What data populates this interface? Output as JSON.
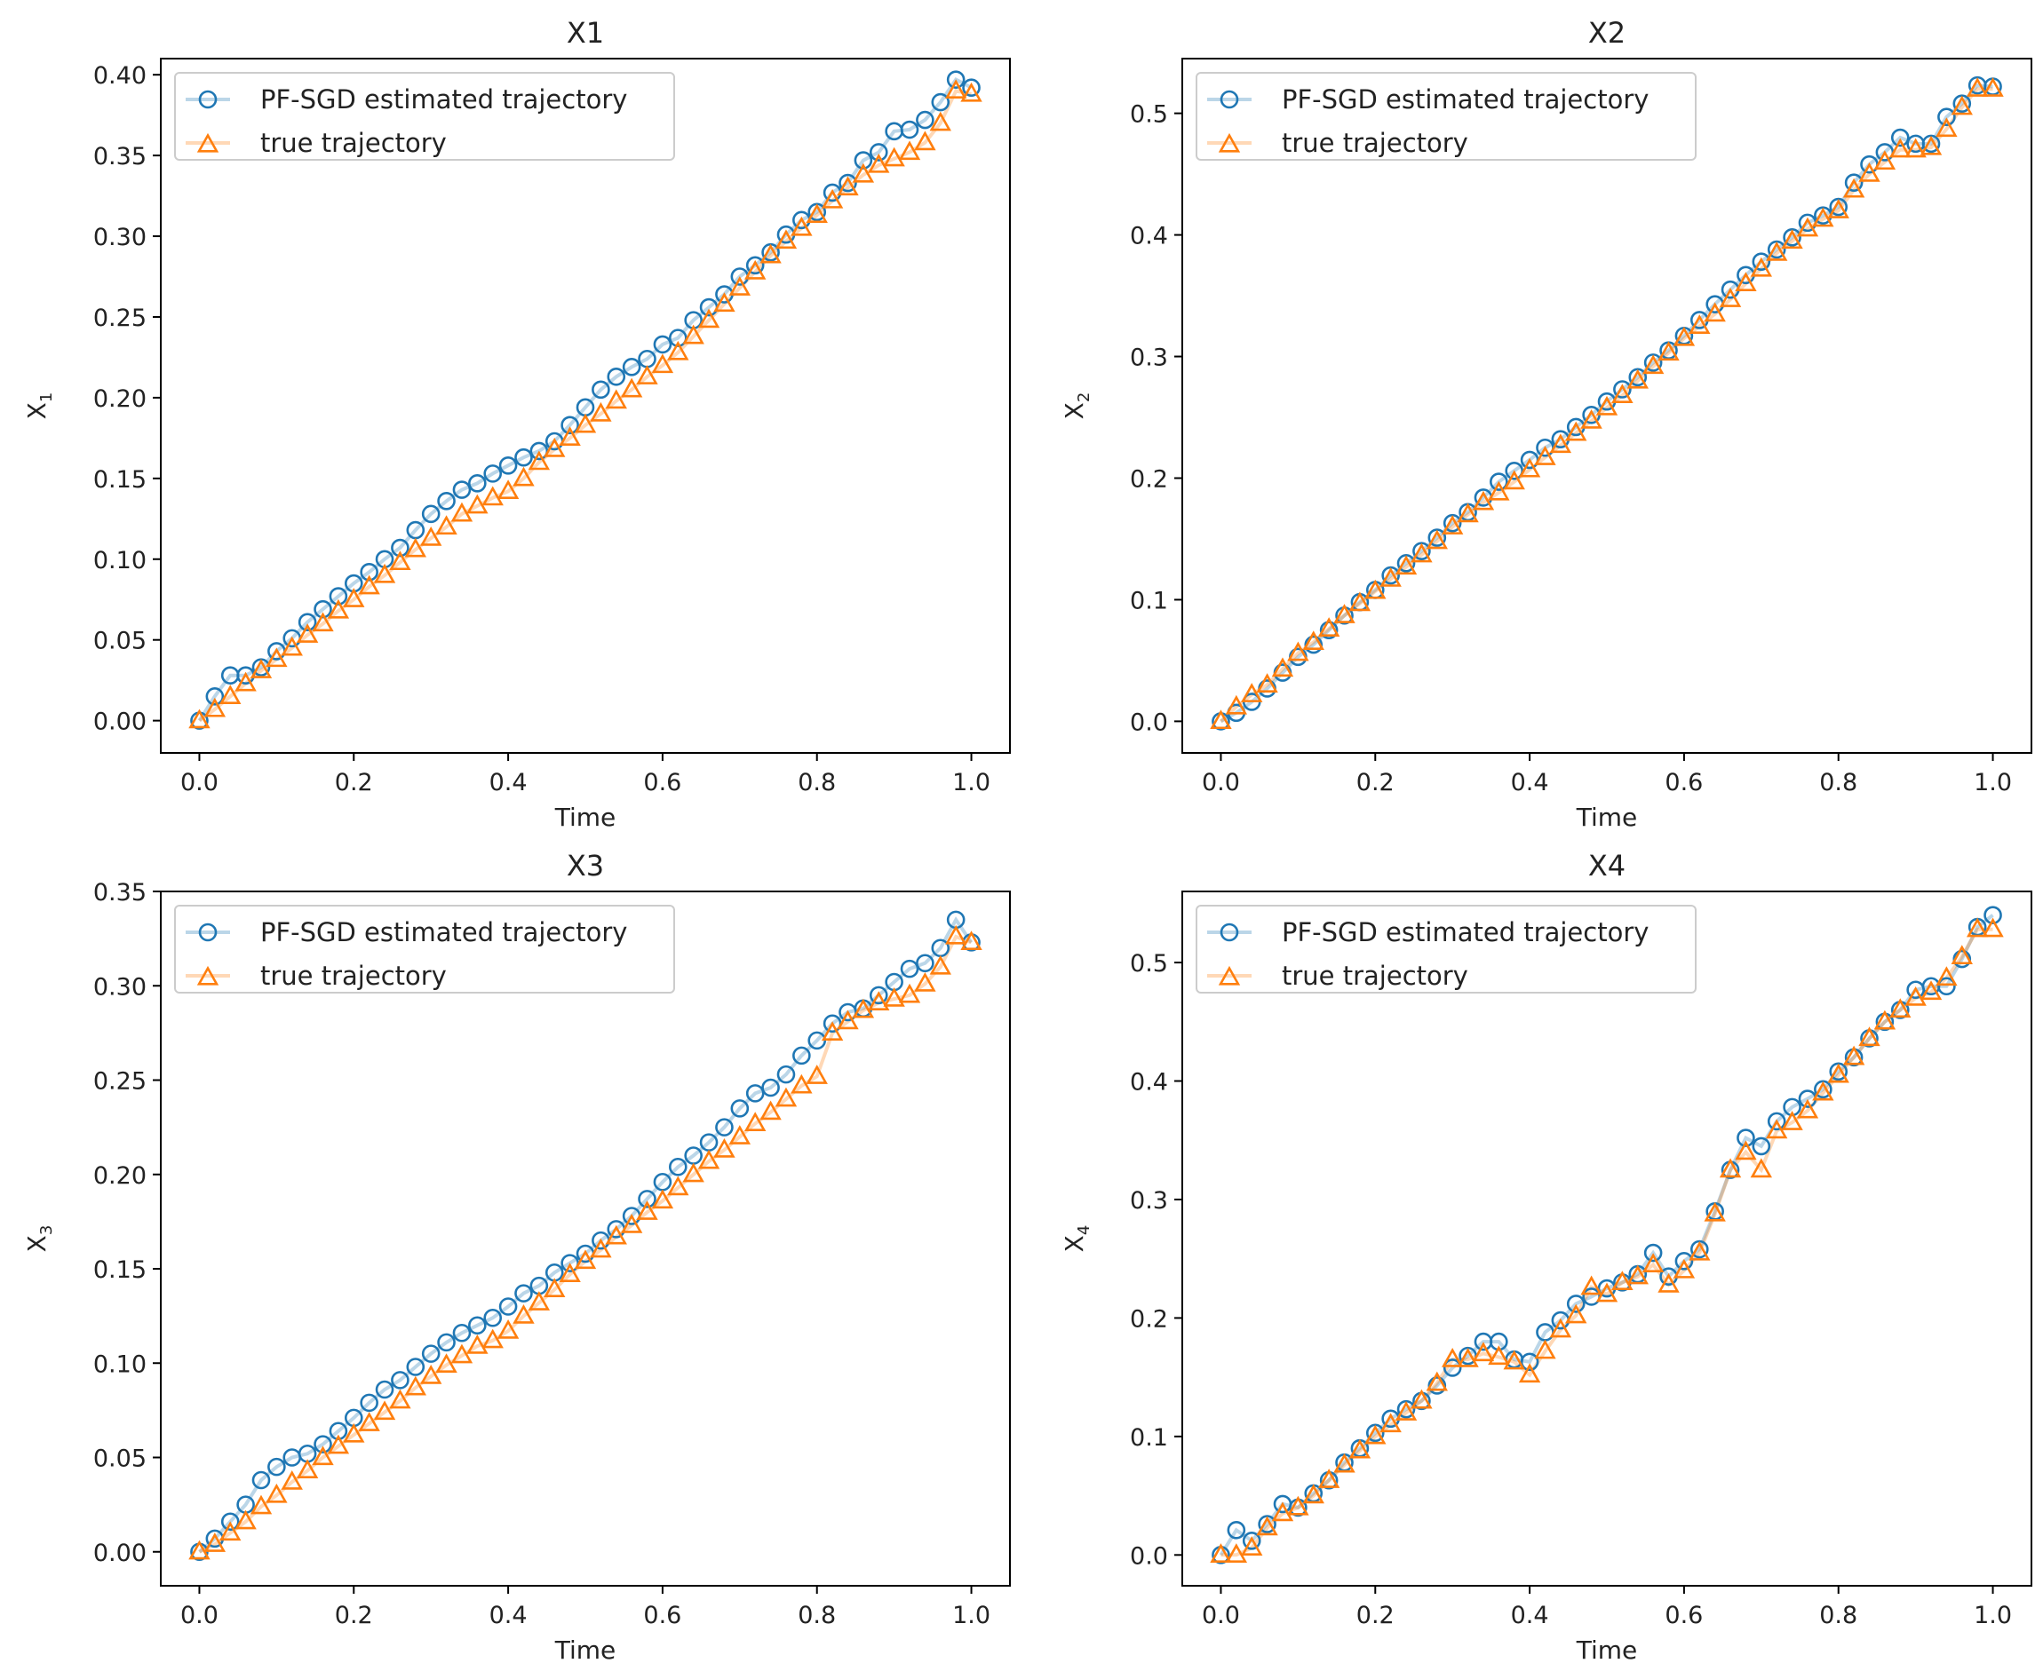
{
  "chart_data": [
    {
      "type": "line",
      "title": "X1",
      "xlabel": "Time",
      "ylabel": "X1",
      "ylabel_main": "X",
      "ylabel_sub": "1",
      "xlim": [
        -0.05,
        1.05
      ],
      "ylim": [
        -0.02,
        0.41
      ],
      "xticks": [
        0.0,
        0.2,
        0.4,
        0.6,
        0.8,
        1.0
      ],
      "xtick_labels": [
        "0.0",
        "0.2",
        "0.4",
        "0.6",
        "0.8",
        "1.0"
      ],
      "yticks": [
        0.0,
        0.05,
        0.1,
        0.15,
        0.2,
        0.25,
        0.3,
        0.35,
        0.4
      ],
      "ytick_labels": [
        "0.00",
        "0.05",
        "0.10",
        "0.15",
        "0.20",
        "0.25",
        "0.30",
        "0.35",
        "0.40"
      ],
      "legend": "top-left",
      "grid": false,
      "x": [
        0.0,
        0.02,
        0.04,
        0.06,
        0.08,
        0.1,
        0.12,
        0.14,
        0.16,
        0.18,
        0.2,
        0.22,
        0.24,
        0.26,
        0.28,
        0.3,
        0.32,
        0.34,
        0.36,
        0.38,
        0.4,
        0.42,
        0.44,
        0.46,
        0.48,
        0.5,
        0.52,
        0.54,
        0.56,
        0.58,
        0.6,
        0.62,
        0.64,
        0.66,
        0.68,
        0.7,
        0.72,
        0.74,
        0.76,
        0.78,
        0.8,
        0.82,
        0.84,
        0.86,
        0.88,
        0.9,
        0.92,
        0.94,
        0.96,
        0.98,
        1.0
      ],
      "series": [
        {
          "name": "PF-SGD estimated trajectory",
          "color": "#1f77b4",
          "marker": "circle",
          "values": [
            0.0,
            0.015,
            0.028,
            0.028,
            0.033,
            0.043,
            0.051,
            0.061,
            0.069,
            0.077,
            0.085,
            0.092,
            0.1,
            0.107,
            0.118,
            0.128,
            0.136,
            0.143,
            0.147,
            0.153,
            0.158,
            0.163,
            0.167,
            0.173,
            0.183,
            0.194,
            0.205,
            0.213,
            0.219,
            0.224,
            0.233,
            0.237,
            0.248,
            0.256,
            0.264,
            0.275,
            0.282,
            0.29,
            0.301,
            0.31,
            0.315,
            0.327,
            0.333,
            0.347,
            0.352,
            0.365,
            0.366,
            0.372,
            0.383,
            0.397,
            0.392
          ]
        },
        {
          "name": "true trajectory",
          "color": "#ff7f0e",
          "marker": "triangle",
          "values": [
            0.0,
            0.007,
            0.015,
            0.023,
            0.031,
            0.038,
            0.045,
            0.053,
            0.06,
            0.068,
            0.075,
            0.083,
            0.09,
            0.098,
            0.106,
            0.113,
            0.12,
            0.128,
            0.133,
            0.138,
            0.142,
            0.15,
            0.16,
            0.168,
            0.175,
            0.183,
            0.19,
            0.198,
            0.205,
            0.213,
            0.22,
            0.228,
            0.238,
            0.248,
            0.258,
            0.268,
            0.278,
            0.288,
            0.297,
            0.305,
            0.313,
            0.322,
            0.33,
            0.338,
            0.344,
            0.348,
            0.352,
            0.358,
            0.37,
            0.39,
            0.388
          ]
        }
      ]
    },
    {
      "type": "line",
      "title": "X2",
      "xlabel": "Time",
      "ylabel": "X2",
      "ylabel_main": "X",
      "ylabel_sub": "2",
      "xlim": [
        -0.05,
        1.05
      ],
      "ylim": [
        -0.026,
        0.545
      ],
      "xticks": [
        0.0,
        0.2,
        0.4,
        0.6,
        0.8,
        1.0
      ],
      "xtick_labels": [
        "0.0",
        "0.2",
        "0.4",
        "0.6",
        "0.8",
        "1.0"
      ],
      "yticks": [
        0.0,
        0.1,
        0.2,
        0.3,
        0.4,
        0.5
      ],
      "ytick_labels": [
        "0.0",
        "0.1",
        "0.2",
        "0.3",
        "0.4",
        "0.5"
      ],
      "legend": "top-left",
      "grid": false,
      "x": [
        0.0,
        0.02,
        0.04,
        0.06,
        0.08,
        0.1,
        0.12,
        0.14,
        0.16,
        0.18,
        0.2,
        0.22,
        0.24,
        0.26,
        0.28,
        0.3,
        0.32,
        0.34,
        0.36,
        0.38,
        0.4,
        0.42,
        0.44,
        0.46,
        0.48,
        0.5,
        0.52,
        0.54,
        0.56,
        0.58,
        0.6,
        0.62,
        0.64,
        0.66,
        0.68,
        0.7,
        0.72,
        0.74,
        0.76,
        0.78,
        0.8,
        0.82,
        0.84,
        0.86,
        0.88,
        0.9,
        0.92,
        0.94,
        0.96,
        0.98,
        1.0
      ],
      "series": [
        {
          "name": "PF-SGD estimated trajectory",
          "color": "#1f77b4",
          "marker": "circle",
          "values": [
            0.0,
            0.007,
            0.016,
            0.027,
            0.04,
            0.053,
            0.063,
            0.075,
            0.087,
            0.098,
            0.108,
            0.12,
            0.13,
            0.14,
            0.151,
            0.163,
            0.172,
            0.184,
            0.197,
            0.206,
            0.215,
            0.225,
            0.232,
            0.242,
            0.252,
            0.263,
            0.273,
            0.283,
            0.295,
            0.305,
            0.317,
            0.33,
            0.343,
            0.355,
            0.367,
            0.378,
            0.388,
            0.398,
            0.41,
            0.416,
            0.423,
            0.443,
            0.458,
            0.468,
            0.48,
            0.475,
            0.475,
            0.497,
            0.508,
            0.523,
            0.522
          ]
        },
        {
          "name": "true trajectory",
          "color": "#ff7f0e",
          "marker": "triangle",
          "values": [
            0.0,
            0.012,
            0.022,
            0.03,
            0.043,
            0.056,
            0.065,
            0.076,
            0.087,
            0.097,
            0.107,
            0.117,
            0.127,
            0.137,
            0.148,
            0.16,
            0.17,
            0.18,
            0.188,
            0.197,
            0.207,
            0.217,
            0.227,
            0.237,
            0.247,
            0.258,
            0.268,
            0.28,
            0.292,
            0.303,
            0.315,
            0.325,
            0.335,
            0.347,
            0.36,
            0.372,
            0.385,
            0.395,
            0.405,
            0.413,
            0.42,
            0.437,
            0.45,
            0.46,
            0.47,
            0.47,
            0.472,
            0.487,
            0.505,
            0.52,
            0.52
          ]
        }
      ]
    },
    {
      "type": "line",
      "title": "X3",
      "xlabel": "Time",
      "ylabel": "X3",
      "ylabel_main": "X",
      "ylabel_sub": "3",
      "xlim": [
        -0.05,
        1.05
      ],
      "ylim": [
        -0.018,
        0.35
      ],
      "xticks": [
        0.0,
        0.2,
        0.4,
        0.6,
        0.8,
        1.0
      ],
      "xtick_labels": [
        "0.0",
        "0.2",
        "0.4",
        "0.6",
        "0.8",
        "1.0"
      ],
      "yticks": [
        0.0,
        0.05,
        0.1,
        0.15,
        0.2,
        0.25,
        0.3,
        0.35
      ],
      "ytick_labels": [
        "0.00",
        "0.05",
        "0.10",
        "0.15",
        "0.20",
        "0.25",
        "0.30",
        "0.35"
      ],
      "legend": "top-left",
      "grid": false,
      "x": [
        0.0,
        0.02,
        0.04,
        0.06,
        0.08,
        0.1,
        0.12,
        0.14,
        0.16,
        0.18,
        0.2,
        0.22,
        0.24,
        0.26,
        0.28,
        0.3,
        0.32,
        0.34,
        0.36,
        0.38,
        0.4,
        0.42,
        0.44,
        0.46,
        0.48,
        0.5,
        0.52,
        0.54,
        0.56,
        0.58,
        0.6,
        0.62,
        0.64,
        0.66,
        0.68,
        0.7,
        0.72,
        0.74,
        0.76,
        0.78,
        0.8,
        0.82,
        0.84,
        0.86,
        0.88,
        0.9,
        0.92,
        0.94,
        0.96,
        0.98,
        1.0
      ],
      "series": [
        {
          "name": "PF-SGD estimated trajectory",
          "color": "#1f77b4",
          "marker": "circle",
          "values": [
            0.0,
            0.007,
            0.016,
            0.025,
            0.038,
            0.045,
            0.05,
            0.052,
            0.057,
            0.064,
            0.071,
            0.079,
            0.086,
            0.091,
            0.098,
            0.105,
            0.111,
            0.116,
            0.12,
            0.124,
            0.13,
            0.137,
            0.141,
            0.148,
            0.153,
            0.158,
            0.165,
            0.171,
            0.178,
            0.187,
            0.196,
            0.204,
            0.21,
            0.217,
            0.225,
            0.235,
            0.243,
            0.246,
            0.253,
            0.263,
            0.271,
            0.28,
            0.286,
            0.288,
            0.295,
            0.302,
            0.309,
            0.312,
            0.32,
            0.335,
            0.323
          ]
        },
        {
          "name": "true trajectory",
          "color": "#ff7f0e",
          "marker": "triangle",
          "values": [
            0.0,
            0.004,
            0.01,
            0.016,
            0.024,
            0.03,
            0.037,
            0.043,
            0.05,
            0.056,
            0.062,
            0.068,
            0.074,
            0.08,
            0.087,
            0.093,
            0.099,
            0.104,
            0.109,
            0.112,
            0.117,
            0.125,
            0.132,
            0.139,
            0.147,
            0.154,
            0.16,
            0.167,
            0.173,
            0.18,
            0.186,
            0.193,
            0.2,
            0.207,
            0.213,
            0.22,
            0.227,
            0.233,
            0.24,
            0.247,
            0.252,
            0.275,
            0.281,
            0.287,
            0.291,
            0.293,
            0.295,
            0.301,
            0.31,
            0.326,
            0.323
          ]
        }
      ]
    },
    {
      "type": "line",
      "title": "X4",
      "xlabel": "Time",
      "ylabel": "X4",
      "ylabel_main": "X",
      "ylabel_sub": "4",
      "xlim": [
        -0.05,
        1.05
      ],
      "ylim": [
        -0.026,
        0.56
      ],
      "xticks": [
        0.0,
        0.2,
        0.4,
        0.6,
        0.8,
        1.0
      ],
      "xtick_labels": [
        "0.0",
        "0.2",
        "0.4",
        "0.6",
        "0.8",
        "1.0"
      ],
      "yticks": [
        0.0,
        0.1,
        0.2,
        0.3,
        0.4,
        0.5
      ],
      "ytick_labels": [
        "0.0",
        "0.1",
        "0.2",
        "0.3",
        "0.4",
        "0.5"
      ],
      "legend": "top-left",
      "grid": false,
      "x": [
        0.0,
        0.02,
        0.04,
        0.06,
        0.08,
        0.1,
        0.12,
        0.14,
        0.16,
        0.18,
        0.2,
        0.22,
        0.24,
        0.26,
        0.28,
        0.3,
        0.32,
        0.34,
        0.36,
        0.38,
        0.4,
        0.42,
        0.44,
        0.46,
        0.48,
        0.5,
        0.52,
        0.54,
        0.56,
        0.58,
        0.6,
        0.62,
        0.64,
        0.66,
        0.68,
        0.7,
        0.72,
        0.74,
        0.76,
        0.78,
        0.8,
        0.82,
        0.84,
        0.86,
        0.88,
        0.9,
        0.92,
        0.94,
        0.96,
        0.98,
        1.0
      ],
      "series": [
        {
          "name": "PF-SGD estimated trajectory",
          "color": "#1f77b4",
          "marker": "circle",
          "values": [
            0.0,
            0.021,
            0.012,
            0.026,
            0.043,
            0.04,
            0.052,
            0.063,
            0.078,
            0.09,
            0.103,
            0.115,
            0.123,
            0.13,
            0.143,
            0.158,
            0.168,
            0.18,
            0.18,
            0.165,
            0.163,
            0.188,
            0.198,
            0.212,
            0.218,
            0.225,
            0.23,
            0.237,
            0.255,
            0.235,
            0.248,
            0.258,
            0.29,
            0.325,
            0.352,
            0.345,
            0.366,
            0.378,
            0.385,
            0.393,
            0.408,
            0.42,
            0.436,
            0.45,
            0.46,
            0.477,
            0.48,
            0.48,
            0.503,
            0.53,
            0.54
          ]
        },
        {
          "name": "true trajectory",
          "color": "#ff7f0e",
          "marker": "triangle",
          "values": [
            0.0,
            0.0,
            0.006,
            0.023,
            0.035,
            0.04,
            0.05,
            0.063,
            0.076,
            0.088,
            0.1,
            0.11,
            0.12,
            0.13,
            0.145,
            0.165,
            0.165,
            0.17,
            0.167,
            0.163,
            0.152,
            0.172,
            0.19,
            0.202,
            0.226,
            0.22,
            0.23,
            0.235,
            0.245,
            0.228,
            0.24,
            0.255,
            0.288,
            0.325,
            0.34,
            0.325,
            0.358,
            0.365,
            0.375,
            0.39,
            0.405,
            0.42,
            0.436,
            0.45,
            0.46,
            0.47,
            0.475,
            0.487,
            0.505,
            0.528,
            0.528
          ]
        }
      ]
    }
  ]
}
